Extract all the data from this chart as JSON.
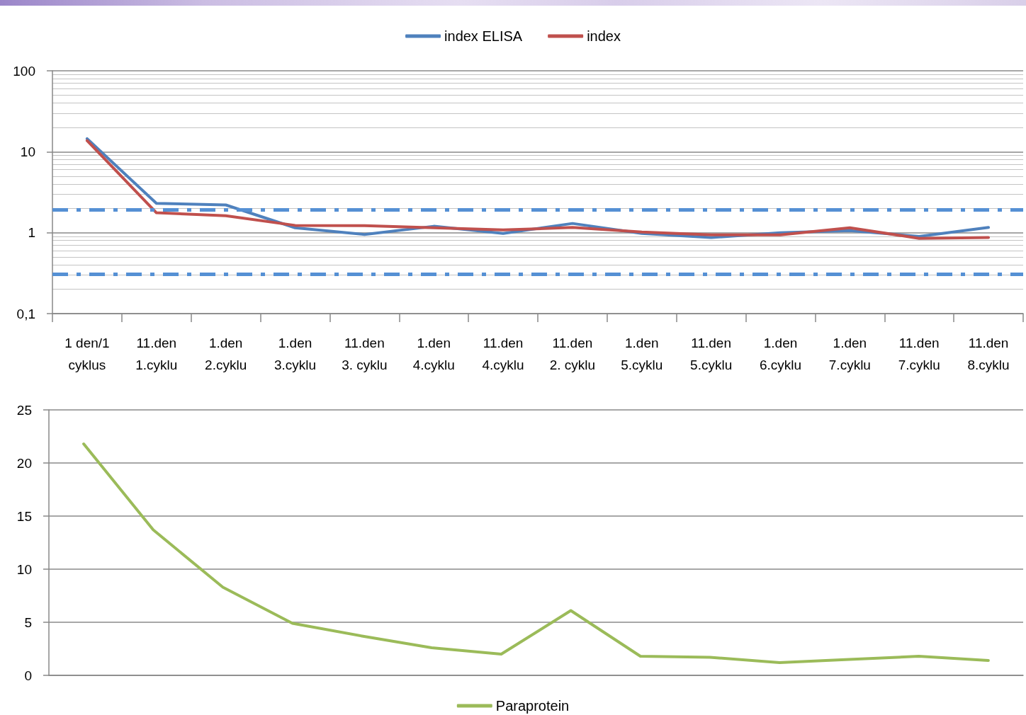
{
  "chart_data": [
    {
      "type": "line",
      "categories": [
        "1 den/1\ncyklus",
        "11.den\n1.cyklu",
        "1.den\n2.cyklu",
        "1.den\n3.cyklu",
        "11.den\n3. cyklu",
        "1.den\n4.cyklu",
        "11.den\n4.cyklu",
        "11.den\n2. cyklu",
        "1.den\n5.cyklu",
        "11.den\n5.cyklu",
        "1.den\n6.cyklu",
        "1.den\n7.cyklu",
        "11.den\n7.cyklu",
        "11.den\n8.cyklu"
      ],
      "series": [
        {
          "name": "index ELISA",
          "color": "#4f81bd",
          "values": [
            14.5,
            2.3,
            2.2,
            1.15,
            0.95,
            1.2,
            0.98,
            1.3,
            0.98,
            0.87,
            1.0,
            1.06,
            0.9,
            1.16
          ]
        },
        {
          "name": "index",
          "color": "#c0504d",
          "values": [
            13.7,
            1.76,
            1.62,
            1.23,
            1.22,
            1.15,
            1.08,
            1.16,
            1.02,
            0.94,
            0.94,
            1.15,
            0.85,
            0.87
          ]
        }
      ],
      "ylim": [
        0.1,
        100
      ],
      "yticks": [
        {
          "value": 0.1,
          "label": "0,1"
        },
        1,
        10,
        100
      ],
      "log": "y",
      "grid": "y",
      "legend": "top",
      "marker": "none",
      "ref_lines": [
        {
          "axis": "y",
          "value": 1.94,
          "color": "#5590d4",
          "line_style": "dashed"
        },
        {
          "axis": "y",
          "value": 0.31,
          "color": "#5590d4",
          "line_style": "dashed"
        }
      ]
    },
    {
      "type": "line",
      "categories": [
        null,
        null,
        null,
        null,
        null,
        null,
        null,
        null,
        null,
        null,
        null,
        null,
        null,
        null
      ],
      "series": [
        {
          "name": "Paraprotein",
          "color": "#9bbb59",
          "values": [
            21.8,
            13.7,
            8.3,
            4.9,
            3.7,
            2.6,
            2.0,
            6.1,
            1.8,
            1.7,
            1.2,
            1.5,
            1.8,
            1.4
          ]
        }
      ],
      "ylim": [
        0,
        25
      ],
      "yticks": [
        0,
        5,
        10,
        15,
        20,
        25
      ],
      "grid": "y",
      "legend": "bottom",
      "marker": "none",
      "tick_labels": "y"
    }
  ]
}
